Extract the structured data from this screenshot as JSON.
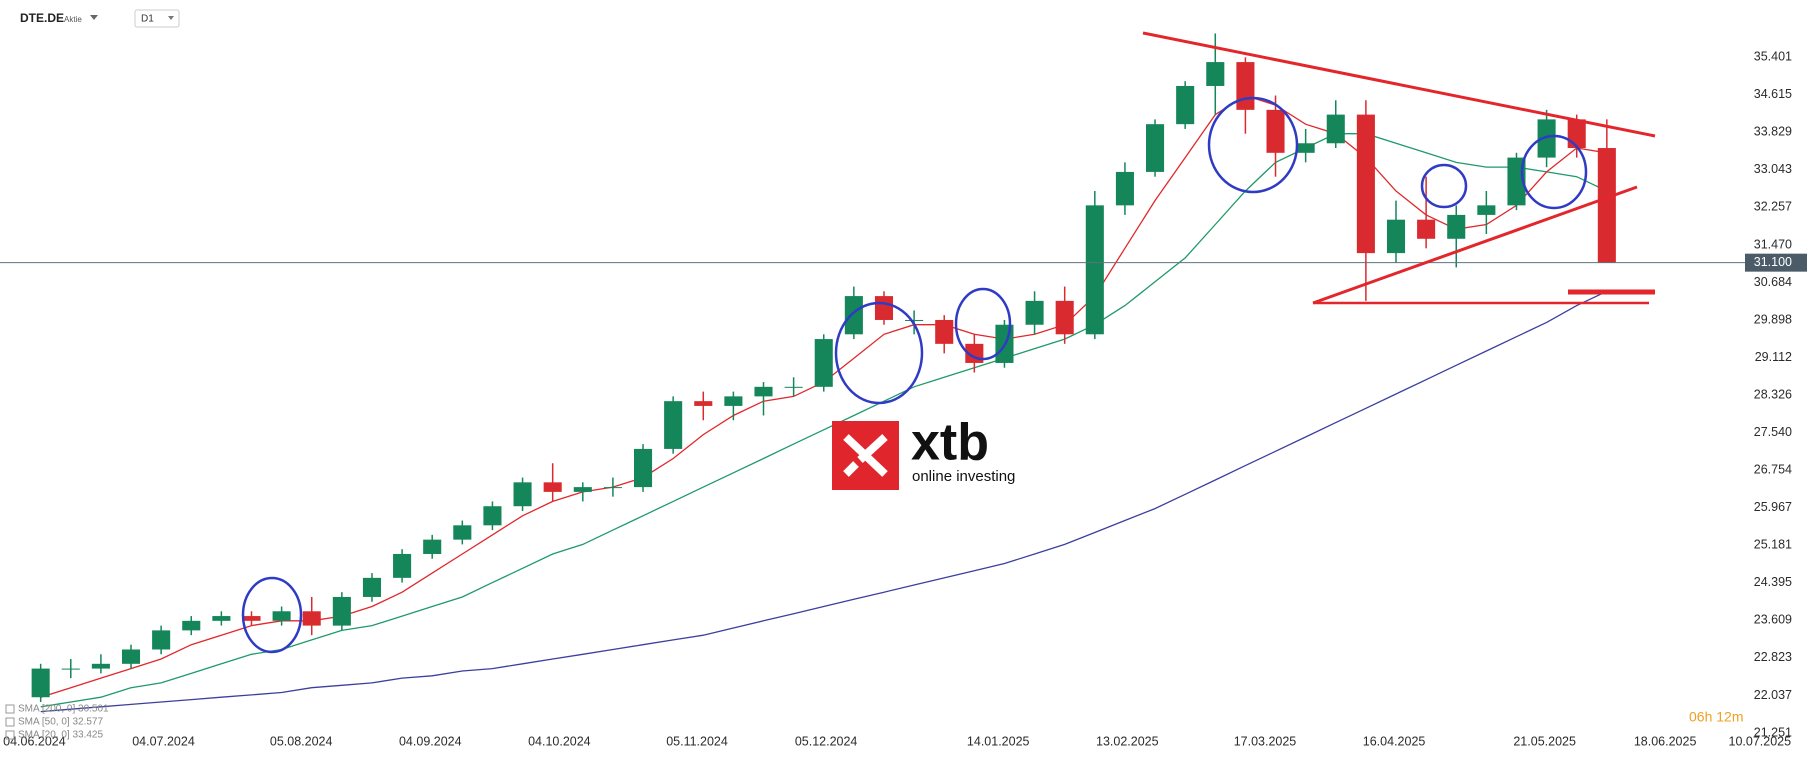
{
  "chart_data": {
    "type": "candlestick",
    "symbol": "DTE.DE",
    "instrument_type": "Aktie",
    "interval": "D1",
    "watermark": {
      "brand": "xtb",
      "tagline": "online investing"
    },
    "countdown": "06h 12m",
    "up_color": "#14865a",
    "down_color": "#d92b2f",
    "grid": false,
    "x": [
      "2024-06-03",
      "2024-06-10",
      "2024-06-17",
      "2024-06-24",
      "2024-07-01",
      "2024-07-08",
      "2024-07-15",
      "2024-07-22",
      "2024-07-29",
      "2024-08-05",
      "2024-08-12",
      "2024-08-19",
      "2024-08-26",
      "2024-09-02",
      "2024-09-09",
      "2024-09-16",
      "2024-09-23",
      "2024-09-30",
      "2024-10-07",
      "2024-10-14",
      "2024-10-21",
      "2024-10-28",
      "2024-11-04",
      "2024-11-11",
      "2024-11-18",
      "2024-11-25",
      "2024-12-02",
      "2024-12-09",
      "2024-12-16",
      "2024-12-23",
      "2024-12-30",
      "2025-01-06",
      "2025-01-13",
      "2025-01-20",
      "2025-01-27",
      "2025-02-03",
      "2025-02-10",
      "2025-02-17",
      "2025-02-24",
      "2025-03-03",
      "2025-03-10",
      "2025-03-17",
      "2025-03-24",
      "2025-03-31",
      "2025-04-07",
      "2025-04-14",
      "2025-04-21",
      "2025-04-28",
      "2025-05-05",
      "2025-05-12",
      "2025-05-19",
      "2025-05-26",
      "2025-06-02"
    ],
    "open": [
      22.0,
      22.6,
      22.6,
      22.7,
      23.0,
      23.4,
      23.6,
      23.7,
      23.6,
      23.8,
      23.5,
      24.1,
      24.5,
      25.0,
      25.3,
      25.6,
      26.0,
      26.5,
      26.3,
      26.4,
      26.4,
      27.2,
      28.2,
      28.1,
      28.3,
      28.5,
      28.5,
      29.6,
      30.4,
      29.9,
      29.9,
      29.4,
      29.0,
      29.8,
      30.3,
      29.6,
      32.3,
      33.0,
      34.0,
      34.8,
      35.3,
      34.3,
      33.4,
      33.6,
      34.2,
      31.3,
      32.0,
      31.6,
      32.1,
      32.3,
      33.3,
      34.1,
      33.5
    ],
    "high": [
      22.7,
      22.8,
      22.9,
      23.1,
      23.5,
      23.7,
      23.8,
      23.8,
      23.9,
      24.1,
      24.2,
      24.6,
      25.1,
      25.4,
      25.7,
      26.1,
      26.6,
      26.9,
      26.5,
      26.6,
      27.3,
      28.3,
      28.4,
      28.4,
      28.6,
      28.7,
      29.6,
      30.6,
      30.5,
      30.1,
      30.0,
      29.6,
      29.9,
      30.5,
      30.6,
      32.6,
      33.2,
      34.1,
      34.9,
      35.9,
      35.4,
      34.6,
      33.9,
      34.5,
      34.5,
      32.4,
      32.9,
      32.3,
      32.6,
      33.4,
      34.3,
      34.2,
      34.1
    ],
    "low": [
      21.9,
      22.4,
      22.5,
      22.6,
      22.9,
      23.3,
      23.5,
      23.5,
      23.5,
      23.3,
      23.4,
      24.0,
      24.4,
      24.9,
      25.2,
      25.5,
      25.9,
      26.1,
      26.1,
      26.2,
      26.3,
      27.1,
      27.8,
      27.8,
      27.9,
      28.3,
      28.4,
      29.5,
      29.8,
      29.6,
      29.2,
      28.8,
      28.9,
      29.6,
      29.4,
      29.5,
      32.1,
      32.9,
      33.9,
      34.2,
      33.8,
      32.9,
      33.2,
      33.5,
      30.3,
      31.1,
      31.4,
      31.0,
      31.7,
      32.2,
      33.1,
      33.3,
      31.1
    ],
    "close": [
      22.6,
      22.6,
      22.7,
      23.0,
      23.4,
      23.6,
      23.7,
      23.6,
      23.8,
      23.5,
      24.1,
      24.5,
      25.0,
      25.3,
      25.6,
      26.0,
      26.5,
      26.3,
      26.4,
      26.4,
      27.2,
      28.2,
      28.1,
      28.3,
      28.5,
      28.5,
      29.5,
      30.4,
      29.9,
      29.9,
      29.4,
      29.0,
      29.8,
      30.3,
      29.6,
      32.3,
      33.0,
      34.0,
      34.8,
      35.3,
      34.3,
      33.4,
      33.6,
      34.2,
      31.3,
      32.0,
      31.6,
      32.1,
      32.3,
      33.3,
      34.1,
      33.5,
      31.1
    ],
    "series": [
      {
        "name": "SMA [200, 0] 30.501",
        "color": "#3b3f9e",
        "values": [
          21.7,
          21.75,
          21.8,
          21.85,
          21.9,
          21.95,
          22.0,
          22.05,
          22.1,
          22.2,
          22.25,
          22.3,
          22.4,
          22.45,
          22.55,
          22.6,
          22.7,
          22.8,
          22.9,
          23.0,
          23.1,
          23.2,
          23.3,
          23.45,
          23.6,
          23.75,
          23.9,
          24.05,
          24.2,
          24.35,
          24.5,
          24.65,
          24.8,
          25.0,
          25.2,
          25.45,
          25.7,
          25.95,
          26.25,
          26.55,
          26.85,
          27.15,
          27.45,
          27.75,
          28.05,
          28.35,
          28.65,
          28.95,
          29.25,
          29.55,
          29.85,
          30.2,
          30.5
        ]
      },
      {
        "name": "SMA [50, 0] 32.577",
        "color": "#1f9a6a",
        "values": [
          21.8,
          21.9,
          22.0,
          22.2,
          22.3,
          22.5,
          22.7,
          22.9,
          23.0,
          23.2,
          23.4,
          23.5,
          23.7,
          23.9,
          24.1,
          24.4,
          24.7,
          25.0,
          25.2,
          25.5,
          25.8,
          26.1,
          26.4,
          26.7,
          27.0,
          27.3,
          27.6,
          27.9,
          28.2,
          28.5,
          28.7,
          28.9,
          29.1,
          29.3,
          29.5,
          29.8,
          30.2,
          30.7,
          31.2,
          31.9,
          32.6,
          33.2,
          33.5,
          33.8,
          33.8,
          33.6,
          33.4,
          33.2,
          33.1,
          33.1,
          33.0,
          32.9,
          32.6
        ]
      },
      {
        "name": "SMA [20, 0] 33.425",
        "color": "#e0282c",
        "values": [
          22.0,
          22.2,
          22.4,
          22.6,
          22.8,
          23.1,
          23.3,
          23.5,
          23.6,
          23.6,
          23.7,
          23.9,
          24.2,
          24.6,
          25.0,
          25.4,
          25.8,
          26.1,
          26.3,
          26.4,
          26.6,
          27.0,
          27.5,
          27.9,
          28.2,
          28.3,
          28.6,
          29.1,
          29.6,
          29.8,
          29.8,
          29.6,
          29.5,
          29.6,
          29.8,
          30.4,
          31.4,
          32.4,
          33.3,
          34.2,
          34.6,
          34.4,
          34.0,
          33.8,
          33.3,
          32.6,
          32.1,
          31.8,
          31.9,
          32.3,
          33.0,
          33.5,
          33.4
        ]
      }
    ],
    "last_price": {
      "value": 31.1,
      "label": "31.100"
    },
    "xlim": [
      "2024-05-27",
      "2025-07-14"
    ],
    "xticks": [
      {
        "value": "2024-06-04",
        "label": "04.06.2024"
      },
      {
        "value": "2024-07-04",
        "label": "04.07.2024"
      },
      {
        "value": "2024-08-05",
        "label": "05.08.2024"
      },
      {
        "value": "2024-09-04",
        "label": "04.09.2024"
      },
      {
        "value": "2024-10-04",
        "label": "04.10.2024"
      },
      {
        "value": "2024-11-05",
        "label": "05.11.2024"
      },
      {
        "value": "2024-12-05",
        "label": "05.12.2024"
      },
      {
        "value": "2025-01-14",
        "label": "14.01.2025"
      },
      {
        "value": "2025-02-13",
        "label": "13.02.2025"
      },
      {
        "value": "2025-03-17",
        "label": "17.03.2025"
      },
      {
        "value": "2025-04-16",
        "label": "16.04.2025"
      },
      {
        "value": "2025-05-21",
        "label": "21.05.2025"
      },
      {
        "value": "2025-06-18",
        "label": "18.06.2025"
      },
      {
        "value": "2025-07-10",
        "label": "10.07.2025"
      }
    ],
    "ylim": [
      21.0,
      36.6
    ],
    "yticks": [
      21.251,
      22.037,
      22.823,
      23.609,
      24.395,
      25.181,
      25.967,
      26.754,
      {
        "value": 27.54,
        "label": "27.540"
      },
      28.326,
      29.112,
      29.898,
      30.684,
      {
        "value": 31.47,
        "label": "31.470"
      },
      32.257,
      33.043,
      33.829,
      34.615,
      35.401
    ]
  }
}
